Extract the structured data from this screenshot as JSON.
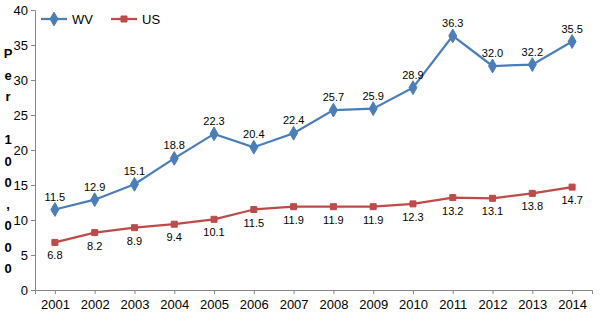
{
  "chart_data": {
    "type": "line",
    "ylabel": "Per 100,000",
    "categories": [
      "2001",
      "2002",
      "2003",
      "2004",
      "2005",
      "2006",
      "2007",
      "2008",
      "2009",
      "2010",
      "2011",
      "2012",
      "2013",
      "2014"
    ],
    "series": [
      {
        "name": "WV",
        "color": "#4a7ebb",
        "marker": "diamond",
        "line_style": "solid",
        "values": [
          11.5,
          12.9,
          15.1,
          18.8,
          22.3,
          20.4,
          22.4,
          25.7,
          25.9,
          28.9,
          36.3,
          32.0,
          32.2,
          35.5
        ],
        "value_labels": [
          "11.5",
          "12.9",
          "15.1",
          "18.8",
          "22.3",
          "20.4",
          "22.4",
          "25.7",
          "25.9",
          "28.9",
          "36.3",
          "32.0",
          "32.2",
          "35.5"
        ]
      },
      {
        "name": "US",
        "color": "#be4b48",
        "marker": "square",
        "line_style": "solid",
        "values": [
          6.8,
          8.2,
          8.9,
          9.4,
          10.1,
          11.5,
          11.9,
          11.9,
          11.9,
          12.3,
          13.2,
          13.1,
          13.8,
          14.7
        ]
      }
    ],
    "ylim": [
      0,
      40
    ],
    "yticks": [
      0,
      5,
      10,
      15,
      20,
      25,
      30,
      35,
      40
    ],
    "grid": false,
    "legend": "upper left",
    "data_labels": true
  }
}
